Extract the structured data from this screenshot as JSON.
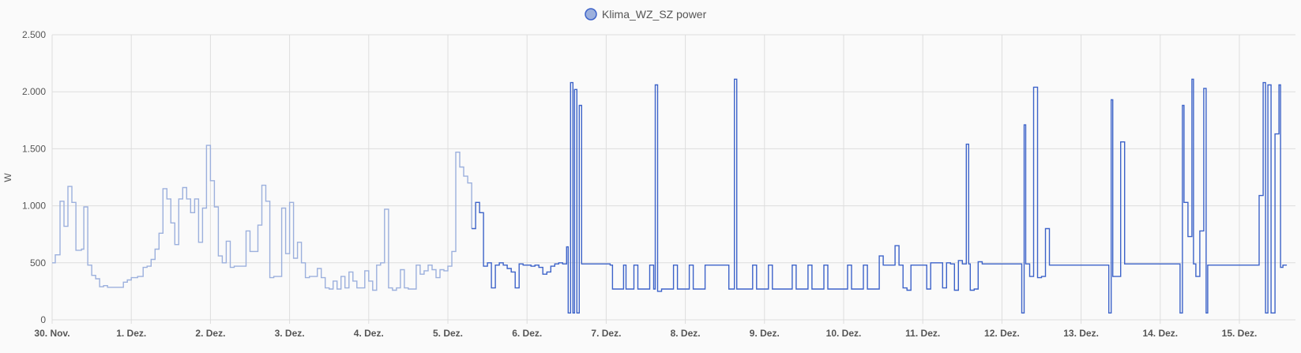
{
  "chart_data": {
    "type": "line",
    "title": "",
    "ylabel": "W",
    "xlabel": "",
    "ylim": [
      0,
      2500
    ],
    "xlim": [
      0,
      15.6
    ],
    "y_ticks": [
      0,
      500,
      1000,
      1500,
      2000,
      2500
    ],
    "y_tick_labels": [
      "0",
      "500",
      "1.000",
      "1.500",
      "2.000",
      "2.500"
    ],
    "x_ticks": [
      0,
      1,
      2,
      3,
      4,
      5,
      6,
      7,
      8,
      9,
      10,
      11,
      12,
      13,
      14,
      15
    ],
    "x_tick_labels": [
      "30. Nov.",
      "1. Dez.",
      "2. Dez.",
      "3. Dez.",
      "4. Dez.",
      "5. Dez.",
      "6. Dez.",
      "7. Dez.",
      "8. Dez.",
      "9. Dez.",
      "10. Dez.",
      "11. Dez.",
      "12. Dez.",
      "13. Dez.",
      "14. Dez.",
      "15. Dez."
    ],
    "grid": true,
    "legend_position": "top-center",
    "series": [
      {
        "name": "Klima_WZ_SZ power",
        "color": "#3d63c9",
        "faded_color": "#9cb0dd",
        "faded_until_x": 5.3,
        "points": [
          [
            0,
            500
          ],
          [
            0.04,
            570
          ],
          [
            0.1,
            1040
          ],
          [
            0.15,
            820
          ],
          [
            0.2,
            1170
          ],
          [
            0.25,
            1030
          ],
          [
            0.3,
            610
          ],
          [
            0.37,
            620
          ],
          [
            0.4,
            990
          ],
          [
            0.45,
            480
          ],
          [
            0.5,
            390
          ],
          [
            0.55,
            360
          ],
          [
            0.6,
            290
          ],
          [
            0.65,
            300
          ],
          [
            0.7,
            285
          ],
          [
            0.8,
            285
          ],
          [
            0.9,
            330
          ],
          [
            0.95,
            350
          ],
          [
            1.0,
            370
          ],
          [
            1.08,
            380
          ],
          [
            1.15,
            460
          ],
          [
            1.2,
            470
          ],
          [
            1.25,
            530
          ],
          [
            1.3,
            620
          ],
          [
            1.35,
            760
          ],
          [
            1.4,
            1150
          ],
          [
            1.45,
            1060
          ],
          [
            1.5,
            850
          ],
          [
            1.55,
            660
          ],
          [
            1.6,
            1060
          ],
          [
            1.65,
            1160
          ],
          [
            1.7,
            1060
          ],
          [
            1.75,
            940
          ],
          [
            1.8,
            1060
          ],
          [
            1.85,
            680
          ],
          [
            1.9,
            980
          ],
          [
            1.95,
            1530
          ],
          [
            2.0,
            1220
          ],
          [
            2.05,
            990
          ],
          [
            2.1,
            560
          ],
          [
            2.15,
            500
          ],
          [
            2.2,
            690
          ],
          [
            2.25,
            460
          ],
          [
            2.3,
            470
          ],
          [
            2.35,
            470
          ],
          [
            2.4,
            470
          ],
          [
            2.45,
            780
          ],
          [
            2.5,
            600
          ],
          [
            2.55,
            600
          ],
          [
            2.6,
            830
          ],
          [
            2.65,
            1180
          ],
          [
            2.7,
            1040
          ],
          [
            2.75,
            370
          ],
          [
            2.8,
            380
          ],
          [
            2.85,
            380
          ],
          [
            2.9,
            980
          ],
          [
            2.95,
            580
          ],
          [
            3.0,
            1030
          ],
          [
            3.05,
            540
          ],
          [
            3.1,
            680
          ],
          [
            3.15,
            500
          ],
          [
            3.2,
            370
          ],
          [
            3.25,
            380
          ],
          [
            3.35,
            450
          ],
          [
            3.4,
            370
          ],
          [
            3.45,
            280
          ],
          [
            3.5,
            270
          ],
          [
            3.55,
            340
          ],
          [
            3.6,
            270
          ],
          [
            3.65,
            380
          ],
          [
            3.7,
            280
          ],
          [
            3.75,
            420
          ],
          [
            3.8,
            340
          ],
          [
            3.85,
            280
          ],
          [
            3.95,
            430
          ],
          [
            4.0,
            340
          ],
          [
            4.05,
            260
          ],
          [
            4.1,
            480
          ],
          [
            4.15,
            500
          ],
          [
            4.2,
            970
          ],
          [
            4.25,
            280
          ],
          [
            4.3,
            260
          ],
          [
            4.35,
            280
          ],
          [
            4.4,
            440
          ],
          [
            4.45,
            280
          ],
          [
            4.5,
            270
          ],
          [
            4.6,
            480
          ],
          [
            4.65,
            400
          ],
          [
            4.7,
            430
          ],
          [
            4.75,
            480
          ],
          [
            4.8,
            440
          ],
          [
            4.85,
            370
          ],
          [
            4.9,
            440
          ],
          [
            4.95,
            430
          ],
          [
            5.0,
            470
          ],
          [
            5.05,
            600
          ],
          [
            5.1,
            1470
          ],
          [
            5.15,
            1340
          ],
          [
            5.2,
            1260
          ],
          [
            5.25,
            1200
          ],
          [
            5.3,
            800
          ],
          [
            5.35,
            1030
          ],
          [
            5.4,
            940
          ],
          [
            5.45,
            470
          ],
          [
            5.5,
            500
          ],
          [
            5.55,
            280
          ],
          [
            5.6,
            480
          ],
          [
            5.65,
            500
          ],
          [
            5.7,
            480
          ],
          [
            5.75,
            450
          ],
          [
            5.8,
            420
          ],
          [
            5.85,
            280
          ],
          [
            5.9,
            490
          ],
          [
            5.95,
            480
          ],
          [
            6.0,
            480
          ],
          [
            6.05,
            470
          ],
          [
            6.1,
            480
          ],
          [
            6.15,
            460
          ],
          [
            6.2,
            400
          ],
          [
            6.25,
            420
          ],
          [
            6.3,
            470
          ],
          [
            6.35,
            490
          ],
          [
            6.4,
            500
          ],
          [
            6.45,
            490
          ],
          [
            6.5,
            640
          ],
          [
            6.52,
            60
          ],
          [
            6.55,
            2080
          ],
          [
            6.58,
            60
          ],
          [
            6.6,
            2020
          ],
          [
            6.63,
            60
          ],
          [
            6.66,
            1880
          ],
          [
            6.69,
            490
          ],
          [
            7.0,
            490
          ],
          [
            7.05,
            480
          ],
          [
            7.08,
            270
          ],
          [
            7.2,
            270
          ],
          [
            7.22,
            480
          ],
          [
            7.25,
            270
          ],
          [
            7.3,
            270
          ],
          [
            7.35,
            480
          ],
          [
            7.4,
            270
          ],
          [
            7.5,
            270
          ],
          [
            7.55,
            480
          ],
          [
            7.6,
            270
          ],
          [
            7.62,
            2060
          ],
          [
            7.65,
            250
          ],
          [
            7.7,
            270
          ],
          [
            7.8,
            270
          ],
          [
            7.85,
            480
          ],
          [
            7.9,
            270
          ],
          [
            8.0,
            270
          ],
          [
            8.05,
            480
          ],
          [
            8.1,
            270
          ],
          [
            8.2,
            270
          ],
          [
            8.25,
            480
          ],
          [
            8.5,
            480
          ],
          [
            8.55,
            270
          ],
          [
            8.62,
            2110
          ],
          [
            8.65,
            270
          ],
          [
            8.8,
            270
          ],
          [
            8.85,
            480
          ],
          [
            8.9,
            270
          ],
          [
            9.0,
            270
          ],
          [
            9.05,
            480
          ],
          [
            9.1,
            270
          ],
          [
            9.3,
            270
          ],
          [
            9.35,
            480
          ],
          [
            9.4,
            270
          ],
          [
            9.55,
            480
          ],
          [
            9.6,
            270
          ],
          [
            9.7,
            270
          ],
          [
            9.75,
            480
          ],
          [
            9.8,
            270
          ],
          [
            10.0,
            270
          ],
          [
            10.05,
            480
          ],
          [
            10.1,
            270
          ],
          [
            10.2,
            270
          ],
          [
            10.25,
            480
          ],
          [
            10.3,
            270
          ],
          [
            10.4,
            270
          ],
          [
            10.45,
            560
          ],
          [
            10.5,
            480
          ],
          [
            10.6,
            480
          ],
          [
            10.65,
            650
          ],
          [
            10.7,
            480
          ],
          [
            10.75,
            280
          ],
          [
            10.8,
            260
          ],
          [
            10.85,
            480
          ],
          [
            11.0,
            480
          ],
          [
            11.05,
            270
          ],
          [
            11.1,
            500
          ],
          [
            11.2,
            500
          ],
          [
            11.25,
            280
          ],
          [
            11.3,
            500
          ],
          [
            11.35,
            490
          ],
          [
            11.4,
            260
          ],
          [
            11.45,
            520
          ],
          [
            11.5,
            490
          ],
          [
            11.55,
            1540
          ],
          [
            11.58,
            490
          ],
          [
            11.6,
            260
          ],
          [
            11.65,
            270
          ],
          [
            11.7,
            510
          ],
          [
            11.75,
            490
          ],
          [
            12.2,
            490
          ],
          [
            12.25,
            60
          ],
          [
            12.28,
            1710
          ],
          [
            12.3,
            490
          ],
          [
            12.35,
            380
          ],
          [
            12.4,
            2040
          ],
          [
            12.45,
            370
          ],
          [
            12.5,
            380
          ],
          [
            12.55,
            800
          ],
          [
            12.6,
            480
          ],
          [
            13.3,
            480
          ],
          [
            13.35,
            60
          ],
          [
            13.38,
            1930
          ],
          [
            13.4,
            380
          ],
          [
            13.45,
            380
          ],
          [
            13.5,
            1560
          ],
          [
            13.55,
            490
          ],
          [
            14.2,
            490
          ],
          [
            14.25,
            60
          ],
          [
            14.28,
            1880
          ],
          [
            14.3,
            1030
          ],
          [
            14.35,
            730
          ],
          [
            14.4,
            2110
          ],
          [
            14.42,
            490
          ],
          [
            14.45,
            380
          ],
          [
            14.5,
            780
          ],
          [
            14.55,
            2030
          ],
          [
            14.58,
            60
          ],
          [
            14.6,
            480
          ],
          [
            15.2,
            480
          ],
          [
            15.25,
            1090
          ],
          [
            15.3,
            2080
          ],
          [
            15.33,
            60
          ],
          [
            15.36,
            2060
          ],
          [
            15.4,
            60
          ],
          [
            15.45,
            1630
          ],
          [
            15.5,
            2060
          ],
          [
            15.52,
            460
          ],
          [
            15.55,
            480
          ],
          [
            15.6,
            480
          ]
        ]
      }
    ]
  }
}
